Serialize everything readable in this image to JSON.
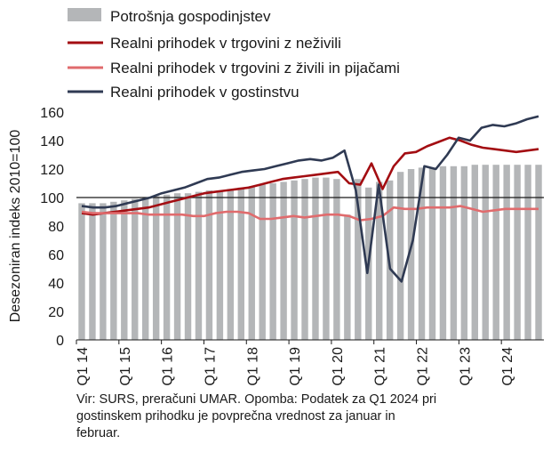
{
  "chart_data": {
    "type": "bar+line",
    "ylabel": "Desezoniran indeks 2010=100",
    "ylim": [
      0,
      160
    ],
    "yticks": [
      0,
      20,
      40,
      60,
      80,
      100,
      120,
      140,
      160
    ],
    "reference_line": 100,
    "x_tick_labels": [
      "Q1 14",
      "Q1 15",
      "Q1 16",
      "Q1 17",
      "Q1 18",
      "Q1 19",
      "Q1 20",
      "Q1 21",
      "Q1 22",
      "Q1 23",
      "Q1 24"
    ],
    "periods_per_year": 4,
    "legend_position": "top-left",
    "bars": {
      "name": "Potrošnja gospodinjstev",
      "color": "#b4b6b8",
      "values": [
        96,
        96,
        96,
        97,
        98,
        99,
        100,
        101,
        102,
        103,
        103,
        104,
        105,
        105,
        106,
        107,
        108,
        109,
        110,
        111,
        112,
        113,
        114,
        114,
        113,
        88,
        113,
        107,
        111,
        112,
        118,
        120,
        121,
        121,
        122,
        122,
        122,
        123,
        123,
        123,
        123,
        123,
        123,
        123
      ]
    },
    "lines": [
      {
        "name": "Realni prihodek v trgovini z neživili",
        "color": "#a30d12",
        "values": [
          89,
          88,
          89,
          90,
          91,
          92,
          93,
          95,
          97,
          99,
          101,
          103,
          104,
          105,
          106,
          107,
          109,
          111,
          113,
          114,
          115,
          116,
          117,
          118,
          110,
          109,
          124,
          106,
          122,
          131,
          132,
          136,
          139,
          142,
          140,
          137,
          135,
          134,
          133,
          132,
          133,
          134
        ]
      },
      {
        "name": "Realni prihodek v trgovini z živili in pijačami",
        "color": "#e06b6d",
        "values": [
          90,
          89,
          89,
          89,
          89,
          89,
          88,
          88,
          88,
          88,
          87,
          87,
          89,
          90,
          90,
          89,
          85,
          85,
          86,
          87,
          86,
          87,
          88,
          88,
          87,
          84,
          85,
          87,
          93,
          92,
          92,
          93,
          93,
          93,
          94,
          92,
          90,
          91,
          92,
          92,
          92,
          92
        ]
      },
      {
        "name": "Realni prihodek v gostinstvu",
        "color": "#2f3a53",
        "values": [
          94,
          93,
          93,
          94,
          96,
          98,
          100,
          103,
          105,
          107,
          110,
          113,
          114,
          116,
          118,
          119,
          120,
          122,
          124,
          126,
          127,
          126,
          128,
          133,
          105,
          47,
          109,
          50,
          41,
          70,
          122,
          120,
          130,
          142,
          140,
          149,
          151,
          150,
          152,
          155,
          157
        ]
      }
    ],
    "note": [
      "Vir: SURS, preračuni UMAR. Opomba: Podatek za Q1 2024 pri",
      "gostinskem prihodku je povprečna vrednost za januar in",
      "februar."
    ]
  }
}
